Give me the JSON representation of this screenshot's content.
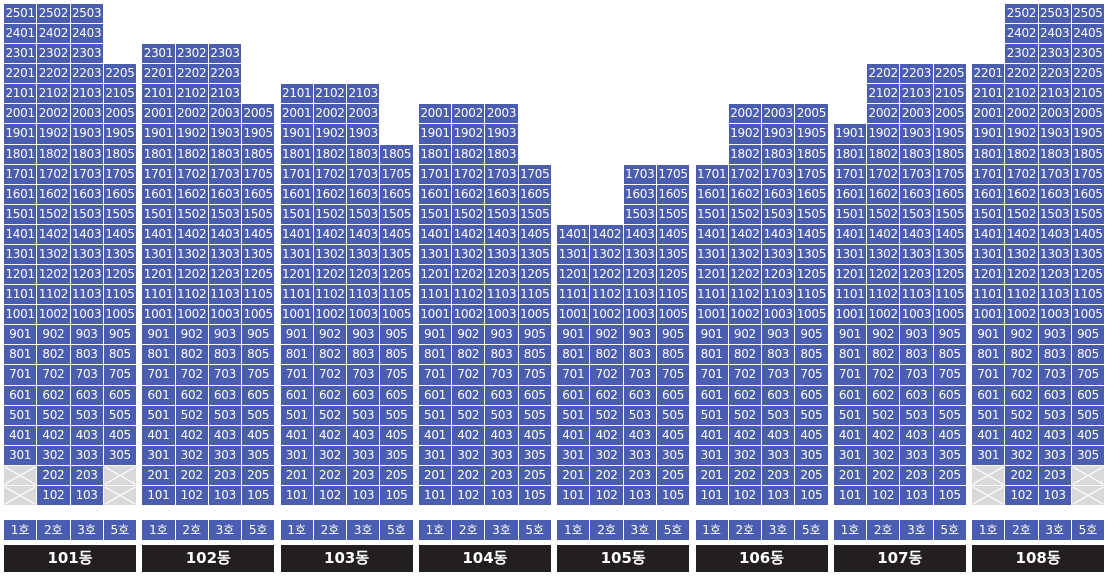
{
  "buildings": [
    {
      "name": "101동",
      "unit_headers": [
        "1호",
        "2호",
        "3호",
        "5호"
      ],
      "columns": [
        [
          301,
          401,
          501,
          601,
          701,
          801,
          901,
          1001,
          1101,
          1201,
          1301,
          1401,
          1501,
          1601,
          1701,
          1801,
          1901,
          2001,
          2101,
          2201,
          2301,
          2401,
          2501
        ],
        [
          102,
          202,
          302,
          402,
          502,
          602,
          702,
          802,
          902,
          1002,
          1102,
          1202,
          1302,
          1402,
          1502,
          1602,
          1702,
          1802,
          1902,
          2002,
          2102,
          2202,
          2302,
          2402,
          2502
        ],
        [
          103,
          203,
          303,
          403,
          503,
          603,
          703,
          803,
          903,
          1003,
          1103,
          1203,
          1303,
          1403,
          1503,
          1603,
          1703,
          1803,
          1903,
          2003,
          2103,
          2203,
          2303,
          2403,
          2503
        ],
        [
          305,
          405,
          505,
          605,
          705,
          805,
          905,
          1005,
          1105,
          1205,
          1305,
          1405,
          1505,
          1605,
          1705,
          1805,
          1905,
          2005,
          2105,
          2205
        ]
      ]
    },
    {
      "name": "102동",
      "unit_headers": [
        "1호",
        "2호",
        "3호",
        "5호"
      ],
      "columns": [
        [
          101,
          201,
          301,
          401,
          501,
          601,
          701,
          801,
          901,
          1001,
          1101,
          1201,
          1301,
          1401,
          1501,
          1601,
          1701,
          1801,
          1901,
          2001,
          2101,
          2201,
          2301
        ],
        [
          102,
          202,
          302,
          402,
          502,
          602,
          702,
          802,
          902,
          1002,
          1102,
          1202,
          1302,
          1402,
          1502,
          1602,
          1702,
          1802,
          1902,
          2002,
          2102,
          2202,
          2302
        ],
        [
          103,
          203,
          303,
          403,
          503,
          603,
          703,
          803,
          903,
          1003,
          1103,
          1203,
          1303,
          1403,
          1503,
          1603,
          1703,
          1803,
          1903,
          2003,
          2103,
          2203,
          2303
        ],
        [
          105,
          205,
          305,
          405,
          505,
          605,
          705,
          805,
          905,
          1005,
          1105,
          1205,
          1305,
          1405,
          1505,
          1605,
          1705,
          1805,
          1905,
          2005
        ]
      ]
    },
    {
      "name": "103동",
      "unit_headers": [
        "1호",
        "2호",
        "3호",
        "5호"
      ],
      "columns": [
        [
          101,
          201,
          301,
          401,
          501,
          601,
          701,
          801,
          901,
          1001,
          1101,
          1201,
          1301,
          1401,
          1501,
          1601,
          1701,
          1801,
          1901,
          2001,
          2101
        ],
        [
          102,
          202,
          302,
          402,
          502,
          602,
          702,
          802,
          902,
          1002,
          1102,
          1202,
          1302,
          1402,
          1502,
          1602,
          1702,
          1802,
          1902,
          2002,
          2102
        ],
        [
          103,
          203,
          303,
          403,
          503,
          603,
          703,
          803,
          903,
          1003,
          1103,
          1203,
          1303,
          1403,
          1503,
          1603,
          1703,
          1803,
          1903,
          2003,
          2103
        ],
        [
          105,
          205,
          305,
          405,
          505,
          605,
          705,
          805,
          905,
          1005,
          1105,
          1205,
          1305,
          1405,
          1505,
          1605,
          1705,
          1805
        ]
      ]
    },
    {
      "name": "104동",
      "unit_headers": [
        "1호",
        "2호",
        "3호",
        "5호"
      ],
      "columns": [
        [
          101,
          201,
          301,
          401,
          501,
          601,
          701,
          801,
          901,
          1001,
          1101,
          1201,
          1301,
          1401,
          1501,
          1601,
          1701,
          1801,
          1901,
          2001
        ],
        [
          102,
          202,
          302,
          402,
          502,
          602,
          702,
          802,
          902,
          1002,
          1102,
          1202,
          1302,
          1402,
          1502,
          1602,
          1702,
          1802,
          1902,
          2002
        ],
        [
          103,
          203,
          303,
          403,
          503,
          603,
          703,
          803,
          903,
          1003,
          1103,
          1203,
          1303,
          1403,
          1503,
          1603,
          1703,
          1803,
          1903,
          2003
        ],
        [
          105,
          205,
          305,
          405,
          505,
          605,
          705,
          805,
          905,
          1005,
          1105,
          1205,
          1305,
          1405,
          1505,
          1605,
          1705
        ]
      ]
    },
    {
      "name": "105동",
      "unit_headers": [
        "1호",
        "2호",
        "3호",
        "5호"
      ],
      "columns": [
        [
          101,
          201,
          301,
          401,
          501,
          601,
          701,
          801,
          901,
          1001,
          1101,
          1201,
          1301,
          1401
        ],
        [
          102,
          202,
          302,
          402,
          502,
          602,
          702,
          802,
          902,
          1002,
          1102,
          1202,
          1302,
          1402
        ],
        [
          103,
          203,
          303,
          403,
          503,
          603,
          703,
          803,
          903,
          1003,
          1103,
          1203,
          1303,
          1403,
          1503,
          1603,
          1703
        ],
        [
          105,
          205,
          305,
          405,
          505,
          605,
          705,
          805,
          905,
          1005,
          1105,
          1205,
          1305,
          1405,
          1505,
          1605,
          1705
        ]
      ]
    },
    {
      "name": "106동",
      "unit_headers": [
        "1호",
        "2호",
        "3호",
        "5호"
      ],
      "columns": [
        [
          101,
          201,
          301,
          401,
          501,
          601,
          701,
          801,
          901,
          1001,
          1101,
          1201,
          1301,
          1401,
          1501,
          1601,
          1701
        ],
        [
          102,
          202,
          302,
          402,
          502,
          602,
          702,
          802,
          902,
          1002,
          1102,
          1202,
          1302,
          1402,
          1502,
          1602,
          1702,
          1802,
          1902,
          2002
        ],
        [
          103,
          203,
          303,
          403,
          503,
          603,
          703,
          803,
          903,
          1003,
          1103,
          1203,
          1303,
          1403,
          1503,
          1603,
          1703,
          1803,
          1903,
          2003
        ],
        [
          105,
          205,
          305,
          405,
          505,
          605,
          705,
          805,
          905,
          1005,
          1105,
          1205,
          1305,
          1405,
          1505,
          1605,
          1705,
          1805,
          1905,
          2005
        ]
      ]
    },
    {
      "name": "107동",
      "unit_headers": [
        "1호",
        "2호",
        "3호",
        "5호"
      ],
      "columns": [
        [
          101,
          201,
          301,
          401,
          501,
          601,
          701,
          801,
          901,
          1001,
          1101,
          1201,
          1301,
          1401,
          1501,
          1601,
          1701,
          1801,
          1901
        ],
        [
          102,
          202,
          302,
          402,
          502,
          602,
          702,
          802,
          902,
          1002,
          1102,
          1202,
          1302,
          1402,
          1502,
          1602,
          1702,
          1802,
          1902,
          2002,
          2102,
          2202
        ],
        [
          103,
          203,
          303,
          403,
          503,
          603,
          703,
          803,
          903,
          1003,
          1103,
          1203,
          1303,
          1403,
          1503,
          1603,
          1703,
          1803,
          1903,
          2003,
          2103,
          2203
        ],
        [
          105,
          205,
          305,
          405,
          505,
          605,
          705,
          805,
          905,
          1005,
          1105,
          1205,
          1305,
          1405,
          1505,
          1605,
          1705,
          1805,
          1905,
          2005,
          2105,
          2205
        ]
      ]
    },
    {
      "name": "108동",
      "unit_headers": [
        "1호",
        "2호",
        "3호",
        "5호"
      ],
      "columns": [
        [
          301,
          401,
          501,
          601,
          701,
          801,
          901,
          1001,
          1101,
          1201,
          1301,
          1401,
          1501,
          1601,
          1701,
          1801,
          1901,
          2001,
          2101,
          2201
        ],
        [
          102,
          202,
          302,
          402,
          502,
          602,
          702,
          802,
          902,
          1002,
          1102,
          1202,
          1302,
          1402,
          1502,
          1602,
          1702,
          1802,
          1902,
          2002,
          2102,
          2202,
          2302,
          2402,
          2502
        ],
        [
          103,
          203,
          303,
          403,
          503,
          603,
          703,
          803,
          903,
          1003,
          1103,
          1203,
          1303,
          1403,
          1503,
          1603,
          1703,
          1803,
          1903,
          2003,
          2103,
          2203,
          2303,
          2403,
          2503
        ],
        [
          305,
          405,
          505,
          605,
          705,
          805,
          905,
          1005,
          1105,
          1205,
          1305,
          1405,
          1505,
          1605,
          1705,
          1805,
          1905,
          2005,
          2105,
          2205,
          2305,
          2405,
          2505
        ]
      ]
    }
  ]
}
